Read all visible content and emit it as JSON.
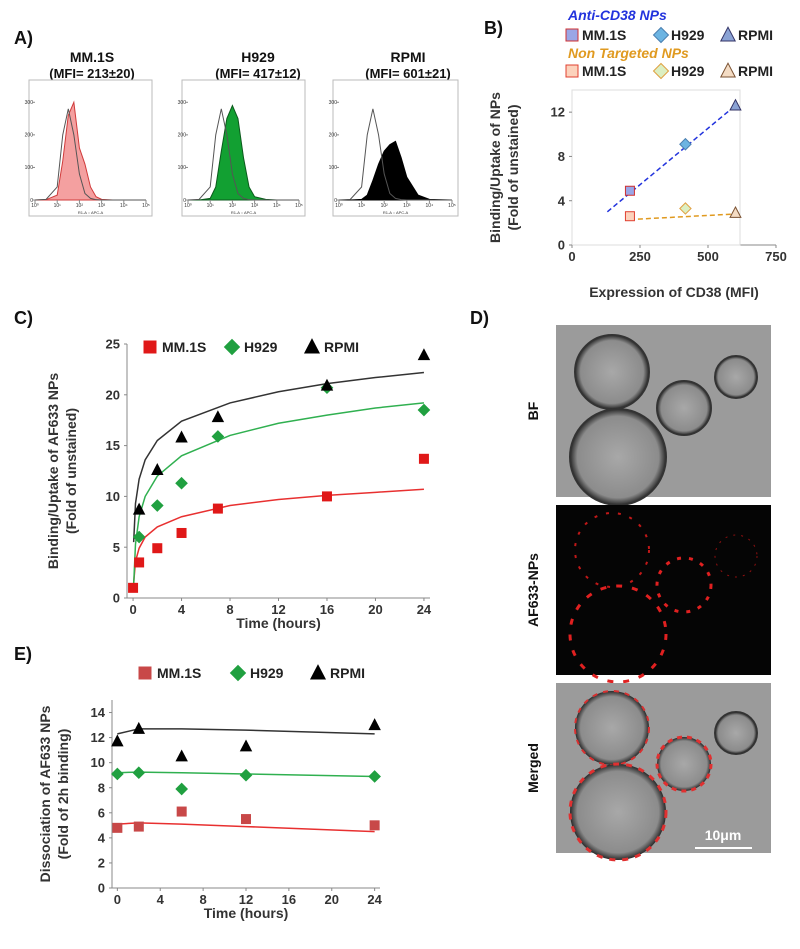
{
  "panels": {
    "labels": [
      "A)",
      "B)",
      "C)",
      "D)",
      "E)"
    ],
    "images": [
      "BF",
      "AF633-NPs",
      "Merged"
    ],
    "scale_bar": "10μm"
  },
  "chart_data": [
    {
      "type": "flow-histogram",
      "title": "MM.1S",
      "subtitle": "(MFI= 213±20)",
      "xlabel": "R1-A :: APC-A",
      "x": [
        0,
        0.5,
        1,
        1.25,
        1.5,
        1.75,
        2,
        2.25,
        2.5,
        2.75,
        3,
        3.5,
        4,
        5
      ],
      "xlim": [
        0,
        5
      ],
      "xticks": [
        {
          "value": 0,
          "label": "10⁰"
        },
        {
          "value": 1,
          "label": "10¹"
        },
        {
          "value": 2,
          "label": "10²"
        },
        {
          "value": 3,
          "label": "10³"
        },
        {
          "value": 4,
          "label": "10⁴"
        },
        {
          "value": 5,
          "label": "10⁵"
        }
      ],
      "ylim": [
        0,
        350
      ],
      "yticks": [
        0,
        100,
        200,
        300
      ],
      "series": [
        {
          "color": "#f4a0a0",
          "edge": "#d03a3a",
          "values": [
            0,
            1,
            15,
            120,
            260,
            300,
            160,
            110,
            40,
            10,
            2,
            0,
            0,
            0
          ]
        },
        {
          "color": "none",
          "edge": "#555555",
          "values": [
            0,
            2,
            40,
            200,
            280,
            200,
            80,
            20,
            5,
            1,
            0,
            0,
            0,
            0
          ]
        }
      ]
    },
    {
      "type": "flow-histogram",
      "title": "H929",
      "subtitle": "(MFI= 417±12)",
      "xlabel": "R1-A :: APC-A",
      "x": [
        0,
        0.5,
        1,
        1.25,
        1.5,
        1.75,
        2,
        2.25,
        2.5,
        2.75,
        3,
        3.5,
        4,
        5
      ],
      "xlim": [
        0,
        5
      ],
      "xticks": [
        {
          "value": 0,
          "label": "10⁰"
        },
        {
          "value": 1,
          "label": "10¹"
        },
        {
          "value": 2,
          "label": "10²"
        },
        {
          "value": 3,
          "label": "10³"
        },
        {
          "value": 4,
          "label": "10⁴"
        },
        {
          "value": 5,
          "label": "10⁵"
        }
      ],
      "ylim": [
        0,
        350
      ],
      "yticks": [
        0,
        100,
        200,
        300
      ],
      "series": [
        {
          "color": "#12a032",
          "edge": "#0b5a1c",
          "values": [
            0,
            0,
            5,
            40,
            150,
            250,
            290,
            250,
            130,
            40,
            10,
            2,
            0,
            0
          ]
        },
        {
          "color": "none",
          "edge": "#555555",
          "values": [
            0,
            2,
            40,
            200,
            280,
            200,
            80,
            20,
            5,
            1,
            0,
            0,
            0,
            0
          ]
        }
      ]
    },
    {
      "type": "flow-histogram",
      "title": "RPMI",
      "subtitle": "(MFI= 601±21)",
      "xlabel": "R1-A :: APC-A",
      "x": [
        0,
        0.5,
        1,
        1.25,
        1.5,
        1.75,
        2,
        2.25,
        2.5,
        2.75,
        3,
        3.5,
        4,
        5
      ],
      "xlim": [
        0,
        5
      ],
      "xticks": [
        {
          "value": 0,
          "label": "10⁰"
        },
        {
          "value": 1,
          "label": "10¹"
        },
        {
          "value": 2,
          "label": "10²"
        },
        {
          "value": 3,
          "label": "10³"
        },
        {
          "value": 4,
          "label": "10⁴"
        },
        {
          "value": 5,
          "label": "10⁵"
        }
      ],
      "ylim": [
        0,
        350
      ],
      "yticks": [
        0,
        100,
        200,
        300
      ],
      "series": [
        {
          "color": "#000000",
          "edge": "#000000",
          "values": [
            0,
            0,
            2,
            15,
            60,
            110,
            150,
            170,
            180,
            130,
            70,
            15,
            2,
            0
          ]
        },
        {
          "color": "none",
          "edge": "#555555",
          "values": [
            0,
            2,
            40,
            200,
            280,
            200,
            80,
            20,
            5,
            1,
            0,
            0,
            0,
            0
          ]
        }
      ]
    },
    {
      "type": "scatter",
      "ylabel": [
        "Binding/Uptake of NPs",
        "(Fold of unstained)"
      ],
      "xlabel": "Expression of CD38 (MFI)",
      "xlim": [
        0,
        750
      ],
      "xticks": [
        0,
        250,
        500,
        750
      ],
      "ylim": [
        0,
        14
      ],
      "yticks": [
        0,
        4,
        8,
        12
      ],
      "legend_groups": [
        {
          "title": "Anti-CD38 NPs",
          "color": "#2233dd"
        },
        {
          "title": "Non Targeted NPs",
          "color": "#e09a20"
        }
      ],
      "series": [
        {
          "name": "MM.1S",
          "group": 0,
          "marker": "square",
          "color": "#9aa6e6",
          "edge": "#d03030",
          "x": [
            213
          ],
          "values": [
            4.9
          ]
        },
        {
          "name": "H929",
          "group": 0,
          "marker": "diamond",
          "color": "#6cb4e2",
          "edge": "#4a7fb0",
          "x": [
            417
          ],
          "values": [
            9.1
          ]
        },
        {
          "name": "RPMI",
          "group": 0,
          "marker": "triangle",
          "color": "#8aa2d4",
          "edge": "#333366",
          "x": [
            601
          ],
          "values": [
            12.6
          ]
        },
        {
          "name": "MM.1S",
          "group": 1,
          "marker": "square",
          "color": "#fcd2bc",
          "edge": "#e04030",
          "x": [
            213
          ],
          "values": [
            2.6
          ]
        },
        {
          "name": "H929",
          "group": 1,
          "marker": "diamond",
          "color": "#dcefc2",
          "edge": "#e0a040",
          "x": [
            417
          ],
          "values": [
            3.3
          ]
        },
        {
          "name": "RPMI",
          "group": 1,
          "marker": "triangle",
          "color": "#f4dcc4",
          "edge": "#7a5030",
          "x": [
            601
          ],
          "values": [
            2.9
          ]
        }
      ],
      "trendlines": [
        {
          "color": "#2233dd",
          "dash": true,
          "x": [
            130,
            601
          ],
          "values": [
            3.0,
            12.6
          ]
        },
        {
          "color": "#e09a20",
          "dash": true,
          "x": [
            213,
            601
          ],
          "values": [
            2.3,
            2.8
          ]
        }
      ]
    },
    {
      "type": "scatter",
      "ylabel": [
        "Binding/Uptake of AF633 NPs",
        "(Fold of unstained)"
      ],
      "xlabel": "Time (hours)",
      "xlim": [
        -0.5,
        24.5
      ],
      "xticks": [
        0,
        4,
        8,
        12,
        16,
        20,
        24
      ],
      "ylim": [
        0,
        25
      ],
      "yticks": [
        0,
        5,
        10,
        15,
        20,
        25
      ],
      "series": [
        {
          "name": "MM.1S",
          "marker": "square",
          "color": "#e01818",
          "edge": "#e01818",
          "x": [
            0,
            0.5,
            2,
            4,
            7,
            16,
            24
          ],
          "values": [
            1.0,
            3.5,
            4.9,
            6.4,
            8.8,
            10.0,
            13.7
          ]
        },
        {
          "name": "H929",
          "marker": "diamond",
          "color": "#20a040",
          "edge": "#20a040",
          "x": [
            0.5,
            2,
            4,
            7,
            16,
            24
          ],
          "values": [
            6.0,
            9.1,
            11.3,
            15.9,
            20.7,
            18.5
          ]
        },
        {
          "name": "RPMI",
          "marker": "triangle",
          "color": "#000000",
          "edge": "#000000",
          "x": [
            0.5,
            2,
            4,
            7,
            16,
            24
          ],
          "values": [
            8.7,
            12.6,
            15.8,
            17.8,
            20.9,
            23.9
          ]
        }
      ],
      "trendlines": [
        {
          "color": "#e83030",
          "x": [
            0.05,
            0.2,
            0.5,
            1,
            2,
            4,
            8,
            12,
            16,
            20,
            24
          ],
          "values": [
            1.5,
            3.6,
            4.9,
            6.0,
            7.0,
            8.0,
            9.1,
            9.7,
            10.1,
            10.4,
            10.7
          ]
        },
        {
          "color": "#30b050",
          "x": [
            0.05,
            0.2,
            0.5,
            1,
            2,
            4,
            8,
            12,
            16,
            20,
            24
          ],
          "values": [
            1.3,
            5.3,
            8.0,
            10.0,
            12.0,
            14.0,
            16.0,
            17.2,
            18.0,
            18.7,
            19.2
          ]
        },
        {
          "color": "#333333",
          "x": [
            0.05,
            0.2,
            0.5,
            1,
            2,
            4,
            8,
            12,
            16,
            20,
            24
          ],
          "values": [
            5.5,
            9.3,
            11.7,
            13.6,
            15.5,
            17.4,
            19.2,
            20.3,
            21.1,
            21.7,
            22.2
          ]
        }
      ]
    },
    {
      "type": "scatter",
      "ylabel": [
        "Dissociation of AF633 NPs",
        "(Fold of 2h binding)"
      ],
      "xlabel": "Time (hours)",
      "xlim": [
        -0.5,
        24.5
      ],
      "xticks": [
        0,
        4,
        8,
        12,
        16,
        20,
        24
      ],
      "ylim": [
        0,
        15
      ],
      "yticks": [
        0,
        2,
        4,
        6,
        8,
        10,
        12,
        14
      ],
      "series": [
        {
          "name": "MM.1S",
          "marker": "square",
          "color": "#c84848",
          "edge": "#c84848",
          "x": [
            0,
            2,
            6,
            12,
            24
          ],
          "values": [
            4.8,
            4.9,
            6.1,
            5.5,
            5.0
          ]
        },
        {
          "name": "H929",
          "marker": "diamond",
          "color": "#20a040",
          "edge": "#20a040",
          "x": [
            0,
            2,
            6,
            12,
            24
          ],
          "values": [
            9.1,
            9.2,
            7.9,
            9.0,
            8.9
          ]
        },
        {
          "name": "RPMI",
          "marker": "triangle",
          "color": "#000000",
          "edge": "#000000",
          "x": [
            0,
            2,
            6,
            12,
            24
          ],
          "values": [
            11.7,
            12.7,
            10.5,
            11.3,
            13.0
          ]
        }
      ],
      "trendlines": [
        {
          "color": "#e83030",
          "x": [
            0,
            2,
            6,
            12,
            24
          ],
          "values": [
            5.1,
            5.2,
            5.1,
            4.9,
            4.5
          ]
        },
        {
          "color": "#30b050",
          "x": [
            0,
            2,
            6,
            12,
            24
          ],
          "values": [
            9.2,
            9.25,
            9.2,
            9.1,
            8.9
          ]
        },
        {
          "color": "#333333",
          "x": [
            0,
            2,
            6,
            12,
            24
          ],
          "values": [
            12.3,
            12.7,
            12.7,
            12.6,
            12.3
          ]
        }
      ]
    }
  ]
}
